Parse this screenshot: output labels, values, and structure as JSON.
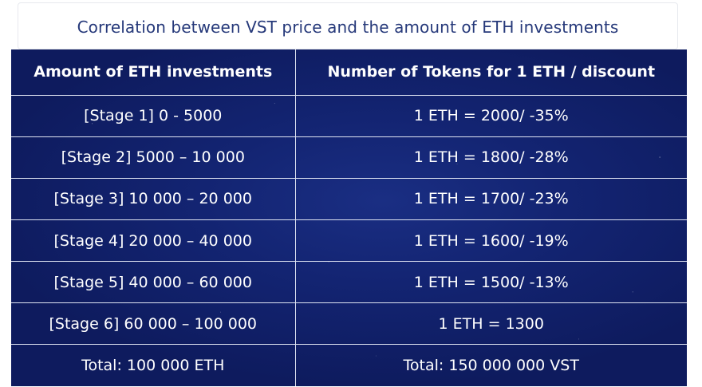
{
  "caption": "Correlation between VST price and the amount of ETH investments",
  "table": {
    "headers": [
      "Amount of ETH investments",
      "Number of Tokens for 1 ETH / discount"
    ],
    "rows": [
      [
        "[Stage 1] 0 - 5000",
        "1 ETH = 2000/ -35%"
      ],
      [
        "[Stage 2] 5000 – 10 000",
        "1 ETH = 1800/ -28%"
      ],
      [
        "[Stage 3] 10 000 – 20 000",
        "1 ETH = 1700/ -23%"
      ],
      [
        "[Stage 4] 20 000 – 40 000",
        "1 ETH = 1600/ -19%"
      ],
      [
        "[Stage 5] 40 000 – 60 000",
        "1 ETH = 1500/ -13%"
      ],
      [
        "[Stage 6] 60 000 – 100 000",
        "1 ETH = 1300"
      ],
      [
        "Total: 100 000 ETH",
        "Total: 150 000 000 VST"
      ]
    ]
  },
  "colors": {
    "caption_text": "#26397a",
    "table_background": "#132472",
    "table_text": "#ffffff",
    "grid_lines": "#dfe4f2"
  }
}
